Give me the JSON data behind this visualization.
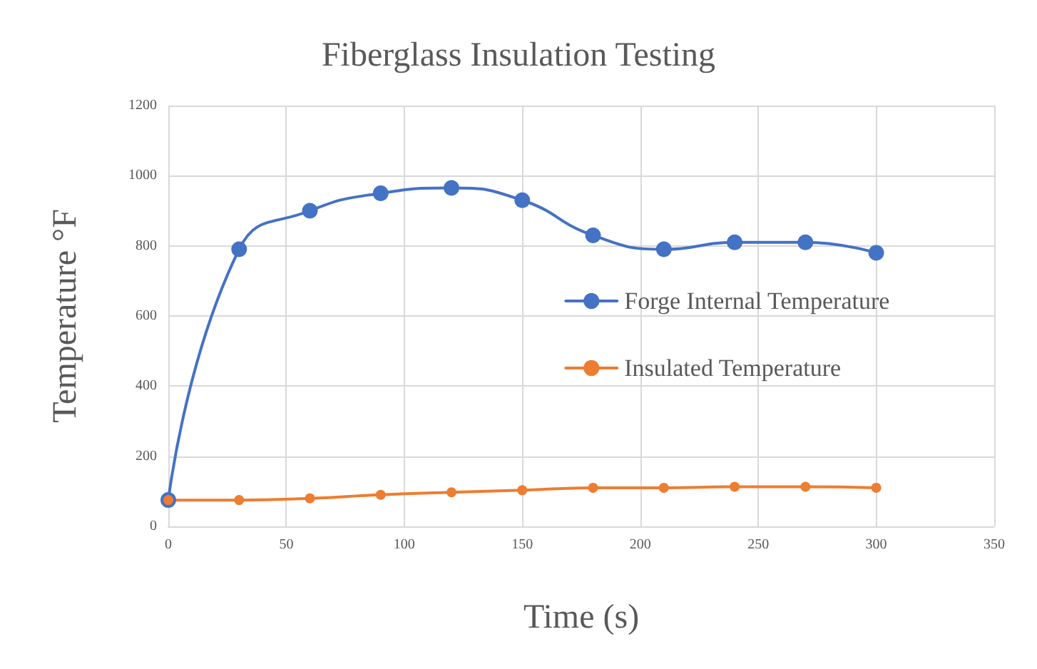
{
  "chart_data": {
    "type": "line",
    "title": "Fiberglass Insulation Testing",
    "xlabel": "Time (s)",
    "ylabel": "Temperature °F",
    "x": [
      0,
      30,
      60,
      90,
      120,
      150,
      180,
      210,
      240,
      270,
      300
    ],
    "series": [
      {
        "name": "Forge Internal Temperature",
        "color": "#4472c4",
        "values": [
          75,
          790,
          900,
          950,
          965,
          930,
          830,
          790,
          810,
          810,
          780
        ]
      },
      {
        "name": "Insulated Temperature",
        "color": "#ed7d31",
        "values": [
          75,
          75,
          80,
          90,
          97,
          103,
          110,
          110,
          113,
          113,
          110
        ]
      }
    ],
    "xlim": [
      0,
      350
    ],
    "xticks": [
      0,
      50,
      100,
      150,
      200,
      250,
      300,
      350
    ],
    "ylim": [
      0,
      1200
    ],
    "yticks": [
      0,
      200,
      400,
      600,
      800,
      1000,
      1200
    ],
    "grid": true,
    "legend": "right",
    "marker": "circle",
    "line_style": "solid"
  }
}
